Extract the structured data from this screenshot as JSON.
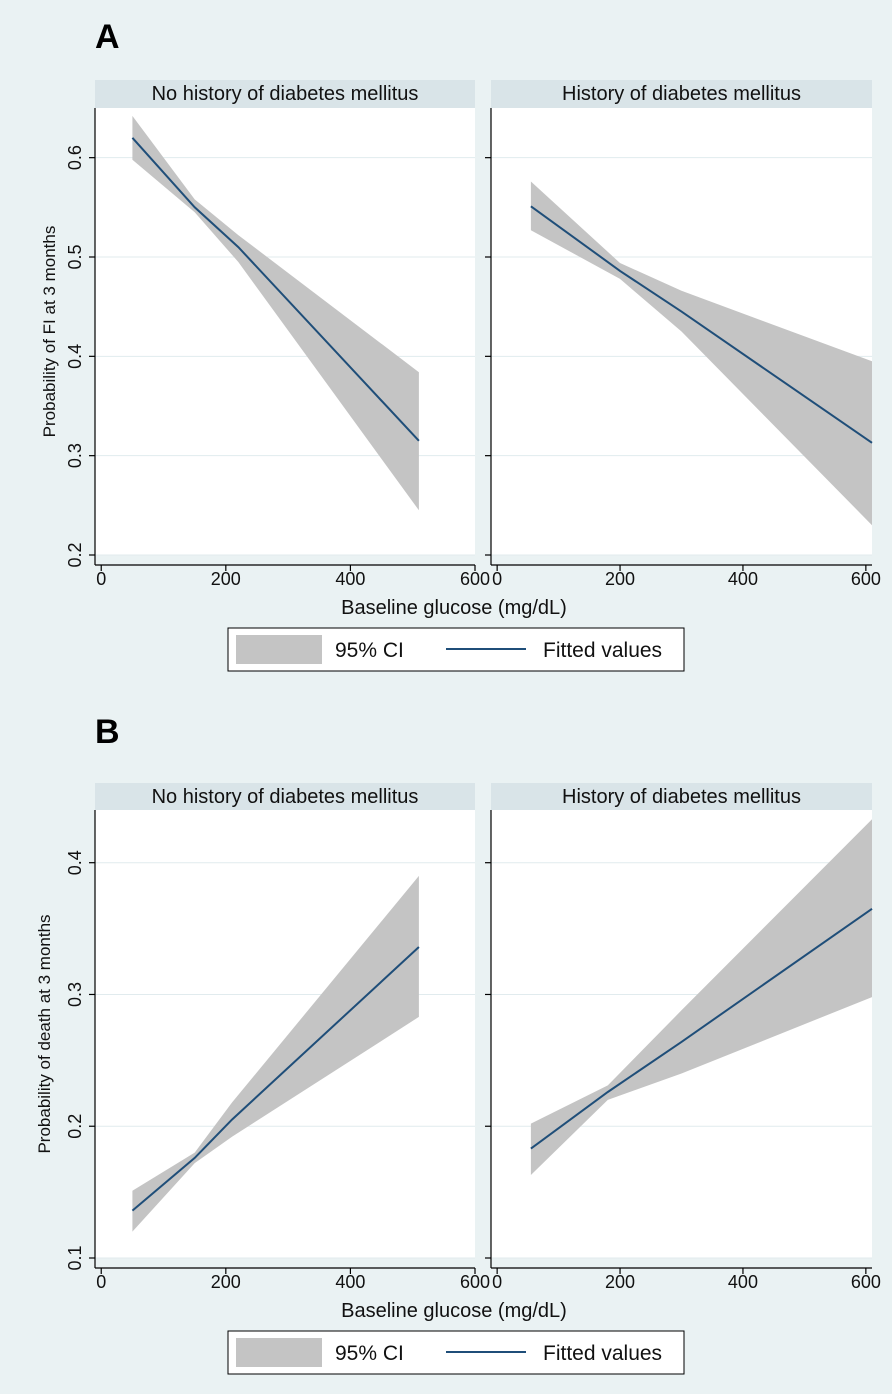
{
  "colors": {
    "figure_background": "#eaf2f3",
    "strip_background": "#d9e4e8",
    "plot_background": "#ffffff",
    "gridline": "#e1ebee",
    "ci_band": "#c4c4c4",
    "fitted_line": "#1f4e79"
  },
  "chart_data": [
    {
      "panel_label": "A",
      "type": "line",
      "ylabel": "Probability of FI at 3 months",
      "xlabel": "Baseline glucose (mg/dL)",
      "ylim": [
        0.2,
        0.65
      ],
      "yticks": [
        0.2,
        0.3,
        0.4,
        0.5,
        0.6
      ],
      "ytick_labels": [
        "0.2",
        "0.3",
        "0.4",
        "0.5",
        "0.6"
      ],
      "grid": "horizontal",
      "legend": {
        "position": "bottom",
        "items": [
          "95% CI",
          "Fitted values"
        ]
      },
      "subplots": [
        {
          "title": "No history of diabetes mellitus",
          "xlim": [
            -10,
            600
          ],
          "xticks": [
            0,
            200,
            400,
            600
          ],
          "xtick_labels": [
            "0",
            "200",
            "400",
            "600"
          ],
          "series": [
            {
              "name": "Fitted values",
              "type": "line",
              "x": [
                50,
                150,
                220,
                510
              ],
              "y": [
                0.62,
                0.55,
                0.51,
                0.315
              ]
            },
            {
              "name": "95% CI",
              "type": "band",
              "x": [
                50,
                150,
                220,
                510
              ],
              "lower": [
                0.598,
                0.545,
                0.495,
                0.245
              ],
              "upper": [
                0.642,
                0.558,
                0.522,
                0.384
              ]
            }
          ]
        },
        {
          "title": "History of diabetes mellitus",
          "xlim": [
            -10,
            610
          ],
          "xticks": [
            0,
            200,
            400,
            600
          ],
          "xtick_labels": [
            "0",
            "200",
            "400",
            "600"
          ],
          "series": [
            {
              "name": "Fitted values",
              "type": "line",
              "x": [
                55,
                200,
                300,
                610
              ],
              "y": [
                0.551,
                0.486,
                0.445,
                0.313
              ]
            },
            {
              "name": "95% CI",
              "type": "band",
              "x": [
                55,
                200,
                300,
                610
              ],
              "lower": [
                0.527,
                0.478,
                0.425,
                0.23
              ],
              "upper": [
                0.576,
                0.494,
                0.466,
                0.395
              ]
            }
          ]
        }
      ]
    },
    {
      "panel_label": "B",
      "type": "line",
      "ylabel": "Probability of death at 3 months",
      "xlabel": "Baseline glucose (mg/dL)",
      "ylim": [
        0.1,
        0.44
      ],
      "yticks": [
        0.1,
        0.2,
        0.3,
        0.4
      ],
      "ytick_labels": [
        "0.1",
        "0.2",
        "0.3",
        "0.4"
      ],
      "grid": "horizontal",
      "legend": {
        "position": "bottom",
        "items": [
          "95% CI",
          "Fitted values"
        ]
      },
      "subplots": [
        {
          "title": "No history of diabetes mellitus",
          "xlim": [
            -10,
            600
          ],
          "xticks": [
            0,
            200,
            400,
            600
          ],
          "xtick_labels": [
            "0",
            "200",
            "400",
            "600"
          ],
          "series": [
            {
              "name": "Fitted values",
              "type": "line",
              "x": [
                50,
                150,
                210,
                510
              ],
              "y": [
                0.136,
                0.176,
                0.205,
                0.336
              ]
            },
            {
              "name": "95% CI",
              "type": "band",
              "x": [
                50,
                150,
                210,
                510
              ],
              "lower": [
                0.12,
                0.172,
                0.192,
                0.283
              ],
              "upper": [
                0.151,
                0.18,
                0.218,
                0.39
              ]
            }
          ]
        },
        {
          "title": "History of diabetes mellitus",
          "xlim": [
            -10,
            610
          ],
          "xticks": [
            0,
            200,
            400,
            600
          ],
          "xtick_labels": [
            "0",
            "200",
            "400",
            "600"
          ],
          "series": [
            {
              "name": "Fitted values",
              "type": "line",
              "x": [
                55,
                180,
                300,
                610
              ],
              "y": [
                0.183,
                0.226,
                0.264,
                0.365
              ]
            },
            {
              "name": "95% CI",
              "type": "band",
              "x": [
                55,
                180,
                300,
                610
              ],
              "lower": [
                0.163,
                0.22,
                0.24,
                0.298
              ],
              "upper": [
                0.202,
                0.231,
                0.288,
                0.433
              ]
            }
          ]
        }
      ]
    }
  ]
}
